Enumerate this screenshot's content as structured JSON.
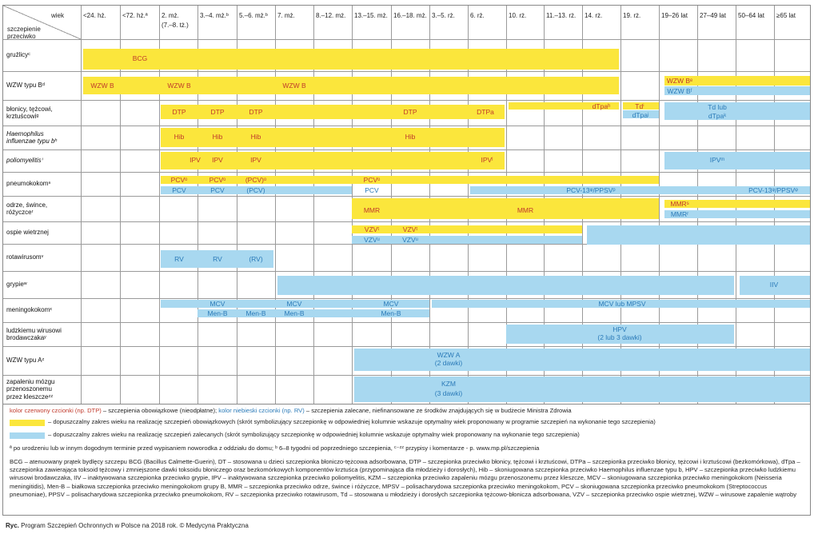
{
  "header": {
    "wiek": "wiek",
    "szczepienie": "szczepienie",
    "przeciwko": "przeciwko",
    "cols": [
      "<24. hż.",
      "<72. hż.ª",
      "2. mż.",
      "3.–4. mż.ᵇ",
      "5.–6. mż.ᵇ",
      "7. mż.",
      "8.–12. mż.",
      "13.–15. mż.",
      "16.–18. mż.",
      "3.–5. rż.",
      "6. rż.",
      "10. rż.",
      "11.–13. rż.",
      "14. rż.",
      "19. rż.",
      "19–26 lat",
      "27–49 lat",
      "50–64 lat",
      "≥65 lat"
    ],
    "col2_sub": "(7.–8. tż.)"
  },
  "rows": [
    {
      "line1": "gruźlicyᶜ",
      "line2": "",
      "line3": ""
    },
    {
      "line1": "WZW typu Bᵈ",
      "line2": "",
      "line3": ""
    },
    {
      "line1": "błonicy, tężcowi,",
      "line2": "krztuścowiᵍ",
      "line3": ""
    },
    {
      "line1": "Haemophilus",
      "line2": "influenzae typu bʰ",
      "line3": ""
    },
    {
      "line1": "poliomyelitisⁱ",
      "line2": "",
      "line3": ""
    },
    {
      "line1": "pneumokokomⁿ",
      "line2": "",
      "line3": ""
    },
    {
      "line1": "odrze, śwince,",
      "line2": "różyczceʳ",
      "line3": ""
    },
    {
      "line1": "ospie wietrznej",
      "line2": "",
      "line3": ""
    },
    {
      "line1": "rotawirusomᵛ",
      "line2": "",
      "line3": ""
    },
    {
      "line1": "grypieʷ",
      "line2": "",
      "line3": ""
    },
    {
      "line1": "meningokokomˣ",
      "line2": "",
      "line3": ""
    },
    {
      "line1": "ludzkiemu wirusowi",
      "line2": "brodawczakaʸ",
      "line3": ""
    },
    {
      "line1": "WZW typu Aᶻ",
      "line2": "",
      "line3": ""
    },
    {
      "line1": "zapaleniu mózgu",
      "line2": "przenoszonemu",
      "line3": "przez kleszczeᶻᶻ"
    }
  ],
  "labels": {
    "bcg": "BCG",
    "wzwb1": "WZW B",
    "wzwb2": "WZW B",
    "wzwb3": "WZW B",
    "wzwb_adult_y": "WZW Bᵉ",
    "wzwb_adult_b": "WZW Bᶠ",
    "dtp1": "DTP",
    "dtp2": "DTP",
    "dtp3": "DTP",
    "dtp4": "DTP",
    "dtpa": "DTPa",
    "dtpa_teen": "dTpaʰ",
    "td": "Tdⁱ",
    "dtpa_b": "dTpaʲ",
    "td_adult": "Td lub",
    "dtpa_adult": "dTpaᵏ",
    "hib1": "Hib",
    "hib2": "Hib",
    "hib3": "Hib",
    "hib4": "Hib",
    "ipv1": "IPV",
    "ipv2": "IPV",
    "ipv3": "IPV",
    "ipv4": "IPVˡ",
    "ipv_adult": "IPVᵐ",
    "pcv_y1": "PCVᵒ",
    "pcv_y2": "PCVᵒ",
    "pcv_y3": "(PCV)ᵒ",
    "pcv_y4": "PCVᵒ",
    "pcv_b1": "PCV",
    "pcv_b2": "PCV",
    "pcv_b3": "(PCV)",
    "pcv_b4": "PCV",
    "pcv13_1": "PCV-13ᵠ/PPSVᵖ",
    "pcv13_2": "PCV-13ᵠ/PPSVᵠ",
    "mmr1": "MMR",
    "mmr2": "MMR",
    "mmr_adult_y": "MMRˢ",
    "mmr_adult_b": "MMRʳ",
    "vzv_y1": "VZVᵗ",
    "vzv_y2": "VZVᵗ",
    "vzv_b1": "VZVᵘ",
    "vzv_b2": "VZVᵘ",
    "rv1": "RV",
    "rv2": "RV",
    "rv3": "(RV)",
    "iiv": "IIV",
    "mcv1": "MCV",
    "mcv2": "MCV",
    "mcv3": "MCV",
    "mcv_lub": "MCV lub MPSV",
    "menb1": "Men-B",
    "menb2": "Men-B",
    "menb3": "Men-B",
    "menb4": "Men-B",
    "hpv1": "HPV",
    "hpv2": "(2 lub 3 dawki)",
    "wzwa1": "WZW A",
    "wzwa2": "(2 dawki)",
    "kzm1": "KZM",
    "kzm2": "(3 dawki)"
  },
  "legend": {
    "red_text": "kolor czerwony czcionki (np. DTP)",
    "red_desc": " – szczepienia obowiązkowe (nieodpłatne); ",
    "blue_text": "kolor niebieski czcionki (np. RV)",
    "blue_desc": " – szczepienia zalecane, niefinansowane ze środków znajdujących się w budżecie Ministra Zdrowia",
    "yellow_desc": "– dopuszczalny zakres wieku na realizację szczepień obowiązkowych (skrót symbolizujący szczepionkę w odpowiedniej kolumnie wskazuje optymalny wiek proponowany w programie szczepień na wykonanie tego szczepienia)",
    "blue_range_desc": "– dopuszczalny zakres wieku na realizację szczepień zalecanych (skrót symbolizujący szczepionkę w odpowiedniej kolumnie wskazuje optymalny wiek proponowany na wykonanie tego szczepienia)",
    "footnote": "ª po urodzeniu lub w innym dogodnym terminie przed wypisaniem noworodka z oddziału do domu; ᵇ 6–8 tygodni od poprzedniego szczepienia, ᶜ⁻ᶻᶻ przypisy i komentarze - p. www.mp.pl/szczepienia",
    "abbr": "BCG – atenuowany prątek bydlęcy szczepu BCG (Bacillus Calmette-Guerin), DT – stosowana u dzieci szczepionka błoniczo-tężcowa adsorbowana, DTP – szczepionka przeciwko błonicy, tężcowi i krztuścowi, DTPa – szczepionka przeciwko błonicy, tężcowi i krztuścowi (bezkomórkowa), dTpa – szczepionka zawierająca toksoid tężcowy i zmniejszone dawki toksoidu błoniczego oraz bezkomórkowych komponentów krztuśca (przypominająca dla młodzieży i dorosłych), Hib – skoniugowana szczepionka przeciwko Haemophilus influenzae typu b, HPV – szczepionka przeciwko ludzkiemu wirusowi brodawczaka, IIV – inaktywowana szczepionka przeciwko grypie, IPV – inaktywowana szczepionka przeciwko poliomyelitis, KZM – szczepionka przeciwko zapaleniu mózgu przenoszonemu przez kleszcze, MCV – skoniugowana szczepionka przeciwko meningokokom (Neisseria meningitidis), Men-B – białkowa szczepionka przeciwko meningokokom grupy B, MMR – szczepionka przeciwko odrze, śwince i różyczce, MPSV – polisacharydowa szczepionka przeciwko meningokokom, PCV – skoniugowana szczepionka przeciwko pneumokokom (Streptococcus pneumoniae), PPSV – polisacharydowa szczepionka przeciwko pneumokokom, RV – szczepionka przeciwko rotawirusom, Td – stosowana u młodzieży i dorosłych szczepionka tężcowo-błonicza adsorbowana, VZV – szczepionka przeciwko ospie wietrznej, WZW – wirusowe zapalenie wątroby"
  },
  "caption": {
    "label": "Ryc.",
    "text": " Program Szczepień Ochronnych w Polsce na 2018 rok. © Medycyna Praktyczna"
  },
  "colors": {
    "yellow": "#fbe63c",
    "blue": "#a8d8f0",
    "red_text": "#c0392b",
    "blue_text": "#2a7ab8"
  }
}
